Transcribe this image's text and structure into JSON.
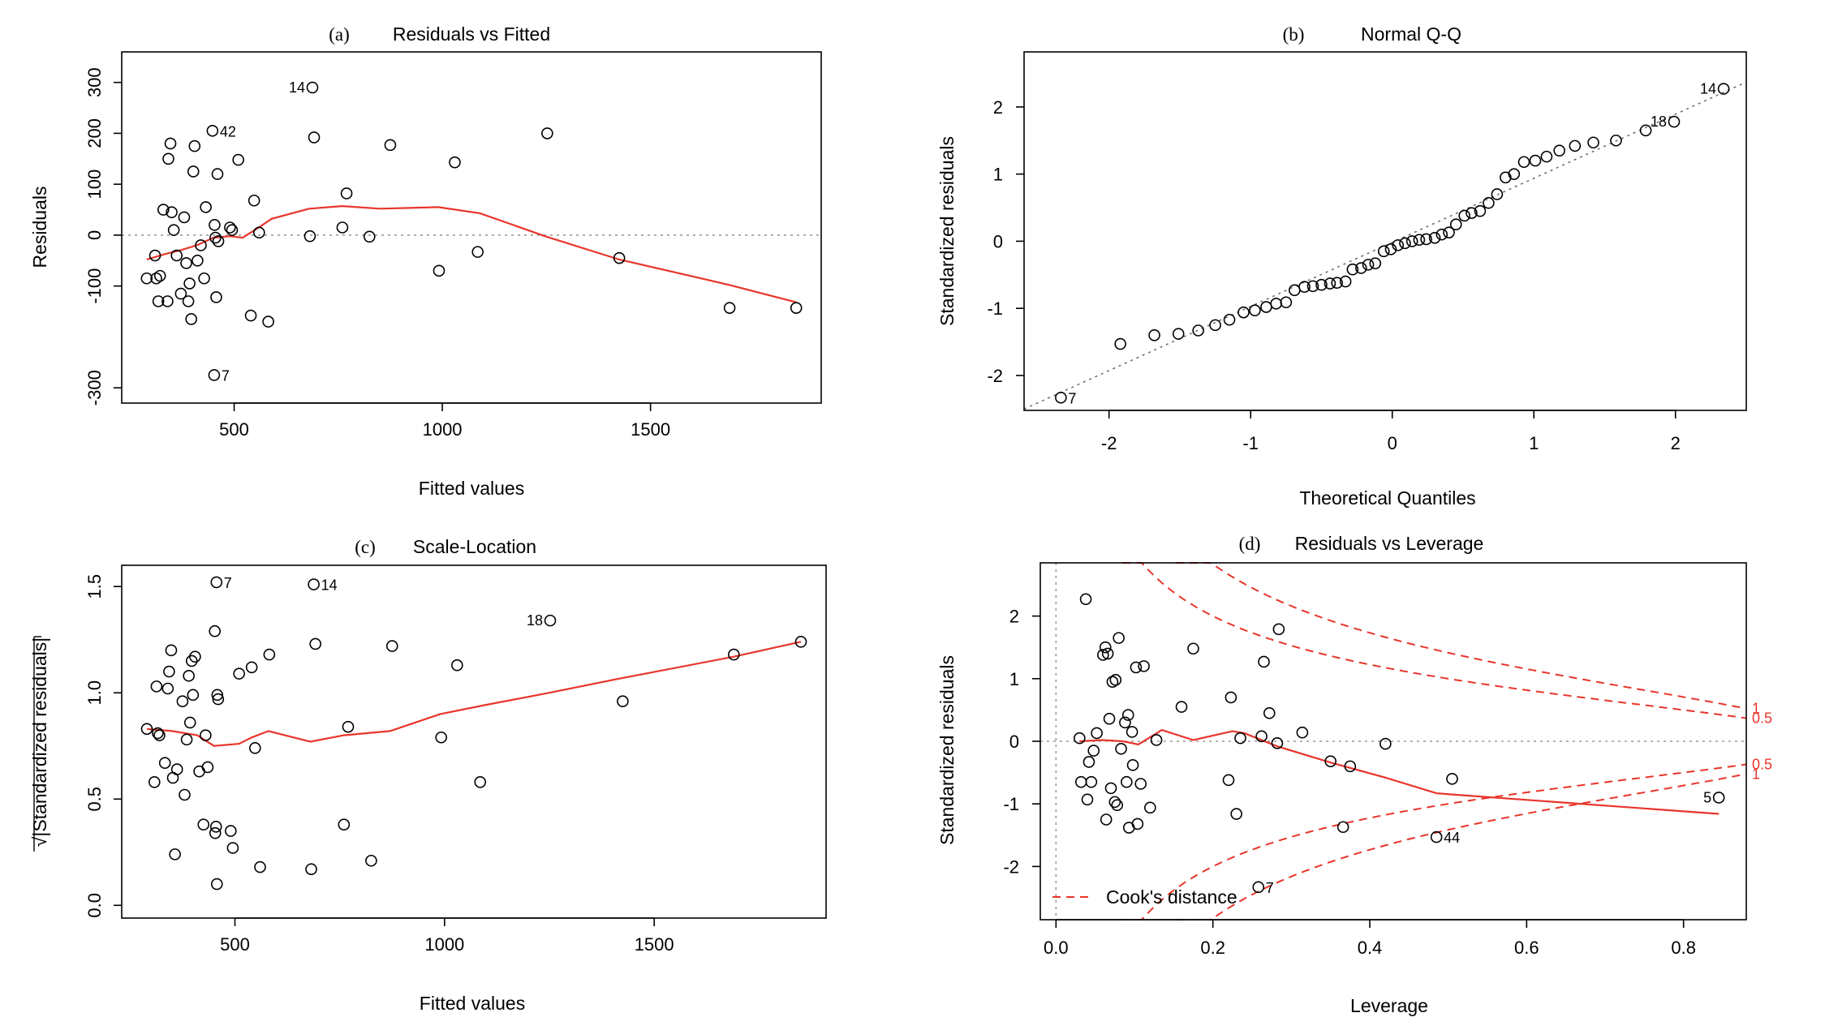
{
  "chart_data": [
    {
      "id": "a",
      "type": "scatter",
      "panel_label": "(a)",
      "title": "Residuals vs Fitted",
      "xlabel": "Fitted values",
      "ylabel": "Residuals",
      "xlim": [
        230,
        1910
      ],
      "ylim": [
        -330,
        360
      ],
      "xticks": [
        500,
        1000,
        1500
      ],
      "yticks": [
        -300,
        -100,
        0,
        100,
        200,
        300
      ],
      "reference_y": 0,
      "points": [
        {
          "x": 290,
          "y": -85
        },
        {
          "x": 310,
          "y": -40
        },
        {
          "x": 313,
          "y": -85
        },
        {
          "x": 318,
          "y": -130
        },
        {
          "x": 322,
          "y": -80
        },
        {
          "x": 330,
          "y": 50
        },
        {
          "x": 340,
          "y": -130
        },
        {
          "x": 342,
          "y": 150
        },
        {
          "x": 347,
          "y": 180
        },
        {
          "x": 350,
          "y": 45
        },
        {
          "x": 355,
          "y": 10
        },
        {
          "x": 362,
          "y": -40
        },
        {
          "x": 372,
          "y": -115
        },
        {
          "x": 380,
          "y": 35
        },
        {
          "x": 385,
          "y": -55
        },
        {
          "x": 390,
          "y": -130
        },
        {
          "x": 393,
          "y": -95
        },
        {
          "x": 397,
          "y": -165
        },
        {
          "x": 402,
          "y": 125
        },
        {
          "x": 405,
          "y": 175
        },
        {
          "x": 412,
          "y": -50
        },
        {
          "x": 420,
          "y": -20
        },
        {
          "x": 428,
          "y": -85
        },
        {
          "x": 432,
          "y": 55
        },
        {
          "x": 448,
          "y": 205
        },
        {
          "x": 452,
          "y": -275
        },
        {
          "x": 453,
          "y": 20
        },
        {
          "x": 455,
          "y": -5
        },
        {
          "x": 457,
          "y": -122
        },
        {
          "x": 460,
          "y": 120
        },
        {
          "x": 462,
          "y": -12
        },
        {
          "x": 490,
          "y": 15
        },
        {
          "x": 495,
          "y": 10
        },
        {
          "x": 510,
          "y": 148
        },
        {
          "x": 540,
          "y": -158
        },
        {
          "x": 548,
          "y": 68
        },
        {
          "x": 560,
          "y": 5
        },
        {
          "x": 582,
          "y": -170
        },
        {
          "x": 682,
          "y": -2
        },
        {
          "x": 688,
          "y": 290
        },
        {
          "x": 692,
          "y": 192
        },
        {
          "x": 760,
          "y": 15
        },
        {
          "x": 770,
          "y": 82
        },
        {
          "x": 825,
          "y": -3
        },
        {
          "x": 875,
          "y": 177
        },
        {
          "x": 992,
          "y": -70
        },
        {
          "x": 1030,
          "y": 143
        },
        {
          "x": 1085,
          "y": -33
        },
        {
          "x": 1252,
          "y": 200
        },
        {
          "x": 1425,
          "y": -45
        },
        {
          "x": 1690,
          "y": -143
        },
        {
          "x": 1850,
          "y": -143
        }
      ],
      "smooth_line": [
        {
          "x": 290,
          "y": -48
        },
        {
          "x": 330,
          "y": -38
        },
        {
          "x": 370,
          "y": -30
        },
        {
          "x": 410,
          "y": -20
        },
        {
          "x": 450,
          "y": -5
        },
        {
          "x": 490,
          "y": -2
        },
        {
          "x": 520,
          "y": -5
        },
        {
          "x": 550,
          "y": 10
        },
        {
          "x": 590,
          "y": 32
        },
        {
          "x": 680,
          "y": 52
        },
        {
          "x": 760,
          "y": 57
        },
        {
          "x": 850,
          "y": 52
        },
        {
          "x": 990,
          "y": 55
        },
        {
          "x": 1090,
          "y": 43
        },
        {
          "x": 1250,
          "y": -3
        },
        {
          "x": 1425,
          "y": -48
        },
        {
          "x": 1690,
          "y": -98
        },
        {
          "x": 1850,
          "y": -132
        }
      ],
      "annotations": [
        {
          "label": "14",
          "x": 688,
          "y": 290,
          "side": "left"
        },
        {
          "label": "42",
          "x": 448,
          "y": 205,
          "side": "right"
        },
        {
          "label": "7",
          "x": 452,
          "y": -275,
          "side": "right"
        }
      ]
    },
    {
      "id": "b",
      "type": "scatter",
      "panel_label": "(b)",
      "title": "Normal Q-Q",
      "xlabel": "Theoretical Quantiles",
      "ylabel": "Standardized residuals",
      "xlim": [
        -2.6,
        2.5
      ],
      "ylim": [
        -2.52,
        2.82
      ],
      "xticks": [
        -2,
        -1,
        0,
        1,
        2
      ],
      "yticks": [
        -2,
        -1,
        0,
        1,
        2
      ],
      "reference_line": [
        {
          "x": -2.6,
          "y": -2.5
        },
        {
          "x": 2.5,
          "y": 2.37
        }
      ],
      "points": [
        {
          "x": -2.34,
          "y": -2.33
        },
        {
          "x": -1.92,
          "y": -1.53
        },
        {
          "x": -1.68,
          "y": -1.4
        },
        {
          "x": -1.51,
          "y": -1.38
        },
        {
          "x": -1.37,
          "y": -1.33
        },
        {
          "x": -1.25,
          "y": -1.25
        },
        {
          "x": -1.15,
          "y": -1.17
        },
        {
          "x": -1.05,
          "y": -1.06
        },
        {
          "x": -0.97,
          "y": -1.03
        },
        {
          "x": -0.89,
          "y": -0.98
        },
        {
          "x": -0.82,
          "y": -0.93
        },
        {
          "x": -0.75,
          "y": -0.91
        },
        {
          "x": -0.69,
          "y": -0.73
        },
        {
          "x": -0.62,
          "y": -0.68
        },
        {
          "x": -0.56,
          "y": -0.67
        },
        {
          "x": -0.5,
          "y": -0.65
        },
        {
          "x": -0.44,
          "y": -0.63
        },
        {
          "x": -0.39,
          "y": -0.62
        },
        {
          "x": -0.33,
          "y": -0.6
        },
        {
          "x": -0.28,
          "y": -0.42
        },
        {
          "x": -0.22,
          "y": -0.4
        },
        {
          "x": -0.17,
          "y": -0.35
        },
        {
          "x": -0.12,
          "y": -0.33
        },
        {
          "x": -0.06,
          "y": -0.15
        },
        {
          "x": -0.01,
          "y": -0.12
        },
        {
          "x": 0.04,
          "y": -0.06
        },
        {
          "x": 0.09,
          "y": -0.03
        },
        {
          "x": 0.14,
          "y": 0.0
        },
        {
          "x": 0.19,
          "y": 0.02
        },
        {
          "x": 0.24,
          "y": 0.03
        },
        {
          "x": 0.3,
          "y": 0.05
        },
        {
          "x": 0.35,
          "y": 0.1
        },
        {
          "x": 0.4,
          "y": 0.13
        },
        {
          "x": 0.45,
          "y": 0.25
        },
        {
          "x": 0.51,
          "y": 0.38
        },
        {
          "x": 0.56,
          "y": 0.42
        },
        {
          "x": 0.62,
          "y": 0.45
        },
        {
          "x": 0.68,
          "y": 0.57
        },
        {
          "x": 0.74,
          "y": 0.7
        },
        {
          "x": 0.8,
          "y": 0.95
        },
        {
          "x": 0.86,
          "y": 1.0
        },
        {
          "x": 0.93,
          "y": 1.18
        },
        {
          "x": 1.01,
          "y": 1.2
        },
        {
          "x": 1.09,
          "y": 1.26
        },
        {
          "x": 1.18,
          "y": 1.35
        },
        {
          "x": 1.29,
          "y": 1.42
        },
        {
          "x": 1.42,
          "y": 1.47
        },
        {
          "x": 1.58,
          "y": 1.5
        },
        {
          "x": 1.79,
          "y": 1.65
        },
        {
          "x": 1.99,
          "y": 1.78
        },
        {
          "x": 2.34,
          "y": 2.27
        }
      ],
      "annotations": [
        {
          "label": "14",
          "x": 2.34,
          "y": 2.27,
          "side": "left"
        },
        {
          "label": "18",
          "x": 1.99,
          "y": 1.78,
          "side": "left"
        },
        {
          "label": "7",
          "x": -2.34,
          "y": -2.33,
          "side": "right"
        }
      ]
    },
    {
      "id": "c",
      "type": "scatter",
      "panel_label": "(c)",
      "title": "Scale-Location",
      "xlabel": "Fitted values",
      "ylabel": "√|Standardized residuals|",
      "xlim": [
        230,
        1910
      ],
      "ylim": [
        -0.06,
        1.6
      ],
      "xticks": [
        500,
        1000,
        1500
      ],
      "yticks": [
        0.0,
        0.5,
        1.0,
        1.5
      ],
      "ytick_labels": [
        "0.0",
        "0.5",
        "1.0",
        "1.5"
      ],
      "points": [
        {
          "x": 290,
          "y": 0.83
        },
        {
          "x": 308,
          "y": 0.58
        },
        {
          "x": 313,
          "y": 1.03
        },
        {
          "x": 316,
          "y": 0.81
        },
        {
          "x": 320,
          "y": 0.8
        },
        {
          "x": 333,
          "y": 0.67
        },
        {
          "x": 340,
          "y": 1.02
        },
        {
          "x": 343,
          "y": 1.1
        },
        {
          "x": 348,
          "y": 1.2
        },
        {
          "x": 352,
          "y": 0.6
        },
        {
          "x": 357,
          "y": 0.24
        },
        {
          "x": 362,
          "y": 0.64
        },
        {
          "x": 375,
          "y": 0.96
        },
        {
          "x": 380,
          "y": 0.52
        },
        {
          "x": 385,
          "y": 0.78
        },
        {
          "x": 390,
          "y": 1.08
        },
        {
          "x": 393,
          "y": 0.86
        },
        {
          "x": 397,
          "y": 1.15
        },
        {
          "x": 400,
          "y": 0.99
        },
        {
          "x": 405,
          "y": 1.17
        },
        {
          "x": 415,
          "y": 0.63
        },
        {
          "x": 425,
          "y": 0.38
        },
        {
          "x": 430,
          "y": 0.8
        },
        {
          "x": 435,
          "y": 0.65
        },
        {
          "x": 452,
          "y": 1.29
        },
        {
          "x": 453,
          "y": 0.34
        },
        {
          "x": 455,
          "y": 0.37
        },
        {
          "x": 456,
          "y": 1.52
        },
        {
          "x": 458,
          "y": 0.99
        },
        {
          "x": 460,
          "y": 0.97
        },
        {
          "x": 457,
          "y": 0.1
        },
        {
          "x": 490,
          "y": 0.35
        },
        {
          "x": 495,
          "y": 0.27
        },
        {
          "x": 510,
          "y": 1.09
        },
        {
          "x": 540,
          "y": 1.12
        },
        {
          "x": 548,
          "y": 0.74
        },
        {
          "x": 560,
          "y": 0.18
        },
        {
          "x": 582,
          "y": 1.18
        },
        {
          "x": 682,
          "y": 0.17
        },
        {
          "x": 688,
          "y": 1.51
        },
        {
          "x": 692,
          "y": 1.23
        },
        {
          "x": 760,
          "y": 0.38
        },
        {
          "x": 770,
          "y": 0.84
        },
        {
          "x": 825,
          "y": 0.21
        },
        {
          "x": 875,
          "y": 1.22
        },
        {
          "x": 992,
          "y": 0.79
        },
        {
          "x": 1030,
          "y": 1.13
        },
        {
          "x": 1085,
          "y": 0.58
        },
        {
          "x": 1252,
          "y": 1.34
        },
        {
          "x": 1425,
          "y": 0.96
        },
        {
          "x": 1690,
          "y": 1.18
        },
        {
          "x": 1850,
          "y": 1.24
        }
      ],
      "smooth_line": [
        {
          "x": 290,
          "y": 0.83
        },
        {
          "x": 350,
          "y": 0.82
        },
        {
          "x": 410,
          "y": 0.8
        },
        {
          "x": 450,
          "y": 0.75
        },
        {
          "x": 510,
          "y": 0.76
        },
        {
          "x": 540,
          "y": 0.79
        },
        {
          "x": 580,
          "y": 0.82
        },
        {
          "x": 680,
          "y": 0.77
        },
        {
          "x": 760,
          "y": 0.8
        },
        {
          "x": 870,
          "y": 0.82
        },
        {
          "x": 990,
          "y": 0.9
        },
        {
          "x": 1090,
          "y": 0.94
        },
        {
          "x": 1250,
          "y": 1.0
        },
        {
          "x": 1425,
          "y": 1.07
        },
        {
          "x": 1690,
          "y": 1.17
        },
        {
          "x": 1850,
          "y": 1.24
        }
      ],
      "annotations": [
        {
          "label": "7",
          "x": 456,
          "y": 1.52,
          "side": "right"
        },
        {
          "label": "14",
          "x": 688,
          "y": 1.51,
          "side": "right"
        },
        {
          "label": "18",
          "x": 1252,
          "y": 1.34,
          "side": "left"
        }
      ]
    },
    {
      "id": "d",
      "type": "scatter",
      "panel_label": "(d)",
      "title": "Residuals vs Leverage",
      "xlabel": "Leverage",
      "ylabel": "Standardized residuals",
      "xlim": [
        -0.02,
        0.88
      ],
      "ylim": [
        -2.85,
        2.85
      ],
      "xticks": [
        0.0,
        0.2,
        0.4,
        0.6,
        0.8
      ],
      "xtick_labels": [
        "0.0",
        "0.2",
        "0.4",
        "0.6",
        "0.8"
      ],
      "yticks": [
        -2,
        -1,
        0,
        1,
        2
      ],
      "legend": {
        "label": "Cook's distance",
        "position": "bottom-left"
      },
      "cook_levels": [
        {
          "level": 0.5,
          "label": "0.5"
        },
        {
          "level": 1,
          "label": "1"
        }
      ],
      "points": [
        {
          "x": 0.03,
          "y": 0.05
        },
        {
          "x": 0.032,
          "y": -0.65
        },
        {
          "x": 0.038,
          "y": 2.27
        },
        {
          "x": 0.04,
          "y": -0.93
        },
        {
          "x": 0.042,
          "y": -0.33
        },
        {
          "x": 0.045,
          "y": -0.65
        },
        {
          "x": 0.048,
          "y": -0.15
        },
        {
          "x": 0.052,
          "y": 0.13
        },
        {
          "x": 0.06,
          "y": 1.38
        },
        {
          "x": 0.063,
          "y": 1.5
        },
        {
          "x": 0.066,
          "y": 1.4
        },
        {
          "x": 0.064,
          "y": -1.25
        },
        {
          "x": 0.068,
          "y": 0.36
        },
        {
          "x": 0.07,
          "y": -0.75
        },
        {
          "x": 0.072,
          "y": 0.95
        },
        {
          "x": 0.075,
          "y": -0.97
        },
        {
          "x": 0.076,
          "y": 0.98
        },
        {
          "x": 0.078,
          "y": -1.02
        },
        {
          "x": 0.08,
          "y": 1.65
        },
        {
          "x": 0.083,
          "y": -0.12
        },
        {
          "x": 0.088,
          "y": 0.3
        },
        {
          "x": 0.092,
          "y": 0.42
        },
        {
          "x": 0.09,
          "y": -0.65
        },
        {
          "x": 0.093,
          "y": -1.38
        },
        {
          "x": 0.097,
          "y": 0.15
        },
        {
          "x": 0.098,
          "y": -0.38
        },
        {
          "x": 0.102,
          "y": 1.18
        },
        {
          "x": 0.104,
          "y": -1.32
        },
        {
          "x": 0.108,
          "y": -0.68
        },
        {
          "x": 0.112,
          "y": 1.2
        },
        {
          "x": 0.12,
          "y": -1.06
        },
        {
          "x": 0.128,
          "y": 0.02
        },
        {
          "x": 0.16,
          "y": 0.55
        },
        {
          "x": 0.175,
          "y": 1.48
        },
        {
          "x": 0.22,
          "y": -0.62
        },
        {
          "x": 0.223,
          "y": 0.7
        },
        {
          "x": 0.23,
          "y": -1.16
        },
        {
          "x": 0.235,
          "y": 0.05
        },
        {
          "x": 0.258,
          "y": -2.33
        },
        {
          "x": 0.262,
          "y": 0.08
        },
        {
          "x": 0.265,
          "y": 1.27
        },
        {
          "x": 0.272,
          "y": 0.45
        },
        {
          "x": 0.282,
          "y": -0.03
        },
        {
          "x": 0.284,
          "y": 1.79
        },
        {
          "x": 0.314,
          "y": 0.14
        },
        {
          "x": 0.35,
          "y": -0.32
        },
        {
          "x": 0.366,
          "y": -1.37
        },
        {
          "x": 0.375,
          "y": -0.4
        },
        {
          "x": 0.42,
          "y": -0.04
        },
        {
          "x": 0.485,
          "y": -1.53
        },
        {
          "x": 0.505,
          "y": -0.6
        },
        {
          "x": 0.845,
          "y": -0.9
        }
      ],
      "smooth_line": [
        {
          "x": 0.03,
          "y": 0.0
        },
        {
          "x": 0.06,
          "y": 0.02
        },
        {
          "x": 0.085,
          "y": 0.0
        },
        {
          "x": 0.105,
          "y": -0.05
        },
        {
          "x": 0.135,
          "y": 0.18
        },
        {
          "x": 0.175,
          "y": 0.02
        },
        {
          "x": 0.225,
          "y": 0.16
        },
        {
          "x": 0.24,
          "y": 0.13
        },
        {
          "x": 0.282,
          "y": -0.08
        },
        {
          "x": 0.35,
          "y": -0.34
        },
        {
          "x": 0.42,
          "y": -0.58
        },
        {
          "x": 0.485,
          "y": -0.83
        },
        {
          "x": 0.505,
          "y": -0.85
        },
        {
          "x": 0.845,
          "y": -1.16
        }
      ],
      "annotations": [
        {
          "label": "5",
          "x": 0.845,
          "y": -0.9,
          "side": "left"
        },
        {
          "label": "44",
          "x": 0.485,
          "y": -1.53,
          "side": "right"
        },
        {
          "label": "7",
          "x": 0.258,
          "y": -2.33,
          "side": "right"
        }
      ]
    }
  ]
}
